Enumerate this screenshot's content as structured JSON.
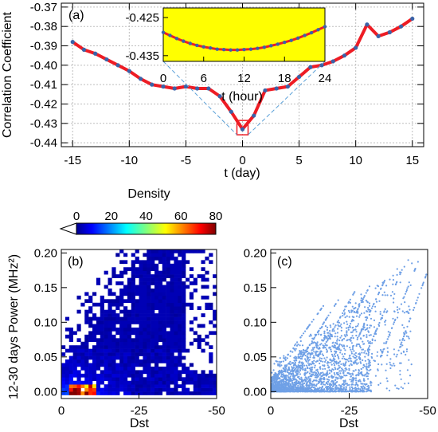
{
  "colors": {
    "line_red": "#ee1c24",
    "point_blue": "#3a63a8",
    "inset_bg": "#ffff00",
    "connector": "#5aa0d8",
    "scatter_blue": "#6fa0e6",
    "box_red": "#ee1c24"
  },
  "chart_data": [
    {
      "id": "a",
      "type": "line",
      "panel_label": "(a)",
      "xlabel": "t (day)",
      "ylabel": "Correlation Coefficient",
      "xlim": [
        -16,
        16
      ],
      "ylim": [
        -0.442,
        -0.368
      ],
      "xticks": [
        -15,
        -10,
        -5,
        0,
        5,
        10,
        15
      ],
      "xtick_labels": [
        "-15",
        "-10",
        "-5",
        "0",
        "5",
        "10",
        "15"
      ],
      "yticks": [
        -0.37,
        -0.38,
        -0.39,
        -0.4,
        -0.41,
        -0.42,
        -0.43,
        -0.44
      ],
      "ytick_labels": [
        "-0.37",
        "-0.38",
        "-0.39",
        "-0.40",
        "-0.41",
        "-0.42",
        "-0.43",
        "-0.44"
      ],
      "grid": true,
      "x": [
        -15,
        -14,
        -13,
        -12,
        -11,
        -10,
        -9,
        -8,
        -7,
        -6,
        -5,
        -4,
        -3,
        -2,
        -1,
        0,
        1,
        2,
        3,
        4,
        5,
        6,
        7,
        8,
        9,
        10,
        11,
        12,
        13,
        14,
        15
      ],
      "y": [
        -0.388,
        -0.392,
        -0.394,
        -0.397,
        -0.4,
        -0.403,
        -0.407,
        -0.41,
        -0.411,
        -0.412,
        -0.411,
        -0.412,
        -0.412,
        -0.416,
        -0.424,
        -0.433,
        -0.426,
        -0.413,
        -0.412,
        -0.411,
        -0.406,
        -0.401,
        -0.4,
        -0.398,
        -0.395,
        -0.391,
        -0.379,
        -0.385,
        -0.383,
        -0.38,
        -0.376
      ],
      "highlight_x": 0
    },
    {
      "id": "a_inset",
      "type": "line",
      "xlabel": "t (hour)",
      "xlim": [
        0,
        24
      ],
      "ylim": [
        -0.4365,
        -0.4225
      ],
      "xticks": [
        0,
        6,
        12,
        18,
        24
      ],
      "xtick_labels": [
        "0",
        "6",
        "12",
        "18",
        "24"
      ],
      "ytick_labels": [
        "-0.425",
        "-0.435"
      ],
      "ytick_values": [
        -0.425,
        -0.435
      ],
      "x": [
        0,
        1,
        2,
        3,
        4,
        5,
        6,
        7,
        8,
        9,
        10,
        11,
        12,
        13,
        14,
        15,
        16,
        17,
        18,
        19,
        20,
        21,
        22,
        23,
        24
      ],
      "y": [
        -0.4289,
        -0.4297,
        -0.4305,
        -0.4312,
        -0.4318,
        -0.4323,
        -0.4327,
        -0.433,
        -0.4333,
        -0.4334,
        -0.4335,
        -0.4335,
        -0.4334,
        -0.4333,
        -0.4331,
        -0.4328,
        -0.4324,
        -0.432,
        -0.4315,
        -0.431,
        -0.4304,
        -0.4297,
        -0.429,
        -0.4282,
        -0.4274
      ]
    },
    {
      "id": "b",
      "type": "heatmap",
      "panel_label": "(b)",
      "colorbar_title": "Density",
      "colorbar_ticks": [
        "0",
        "20",
        "40",
        "60",
        "80"
      ],
      "colorbar_range": [
        0,
        80
      ],
      "xlabel": "Dst",
      "ylabel": "12-30 days Power (MHz²)",
      "xlim": [
        0,
        -50
      ],
      "ylim": [
        -0.01,
        0.205
      ],
      "xticks": [
        0,
        -25,
        -50
      ],
      "xtick_labels": [
        "0",
        "-25",
        "-50"
      ],
      "yticks": [
        0.0,
        0.05,
        0.1,
        0.15,
        0.2
      ],
      "ytick_labels": [
        "0.00",
        "0.05",
        "0.10",
        "0.15",
        "0.20"
      ],
      "bins_x": 40,
      "bins_y": 42
    },
    {
      "id": "c",
      "type": "scatter",
      "panel_label": "(c)",
      "xlabel": "Dst",
      "xlim": [
        0,
        -50
      ],
      "ylim": [
        -0.01,
        0.205
      ],
      "xticks": [
        0,
        -25,
        -50
      ],
      "xtick_labels": [
        "0",
        "-25",
        "-50"
      ],
      "yticks": [
        0.0,
        0.05,
        0.1,
        0.15,
        0.2
      ],
      "ytick_labels": [
        "0.00",
        "0.05",
        "0.10",
        "0.15",
        "0.20"
      ]
    }
  ]
}
